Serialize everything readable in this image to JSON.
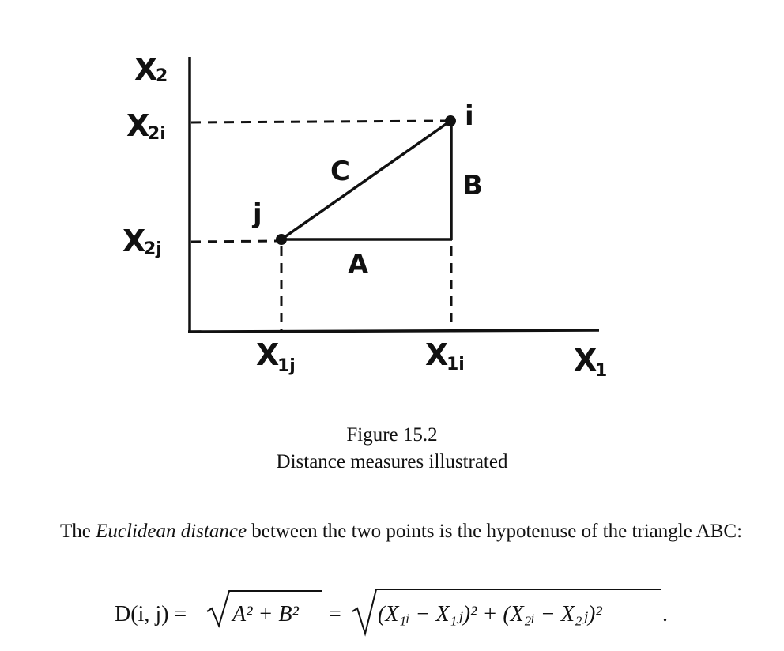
{
  "figure": {
    "axis_labels": {
      "y_axis": {
        "main": "X",
        "sub": "2"
      },
      "x_axis": {
        "main": "X",
        "sub": "1"
      }
    },
    "tick_labels": {
      "x2i": {
        "main": "X",
        "sub": "2i"
      },
      "x2j": {
        "main": "X",
        "sub": "2j"
      },
      "x1j": {
        "main": "X",
        "sub": "1j"
      },
      "x1i": {
        "main": "X",
        "sub": "1i"
      }
    },
    "point_labels": {
      "i": "i",
      "j": "j"
    },
    "side_labels": {
      "a": "A",
      "b": "B",
      "c": "C"
    }
  },
  "caption": {
    "number": "Figure 15.2",
    "title": "Distance measures illustrated"
  },
  "paragraph": {
    "before": "The ",
    "term": "Euclidean distance",
    "after": " between the two points is the hypotenuse of the triangle ABC:"
  },
  "equation": {
    "lhs": "D(i, j) =",
    "sqrt1_body": "A² + B²",
    "eq2": "=",
    "sqrt2_body": "(X₁ᵢ − X₁ⱼ)² + (X₂ᵢ − X₂ⱼ)²",
    "end": "."
  }
}
